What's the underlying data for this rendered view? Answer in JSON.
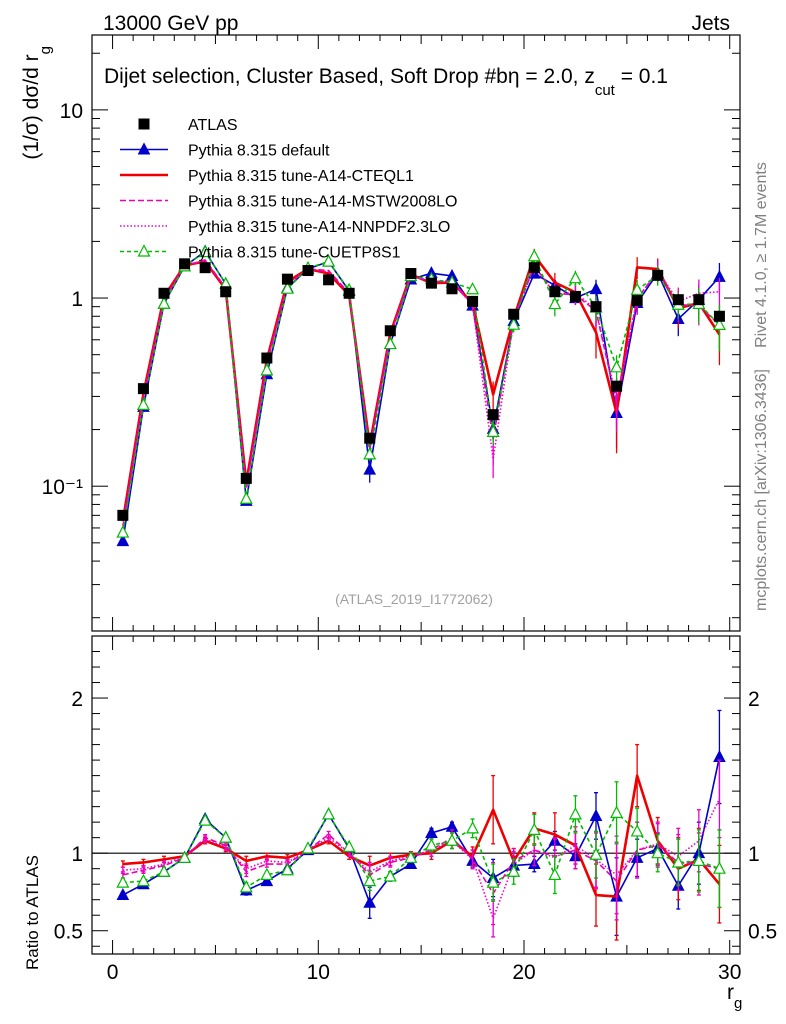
{
  "header": {
    "left": "13000 GeV pp",
    "right": "Jets",
    "rivet": "Rivet 4.1.0, ≥ 1.7M events",
    "mcplots": "mcplots.cern.ch [arXiv:1306.3436]",
    "analysis": "(ATLAS_2019_I1772062)"
  },
  "chart_data": {
    "type": "line",
    "title": "Dijet selection, Cluster Based, Soft Drop #bη = 2.0, z",
    "title_sub": "cut",
    "title_tail": " = 0.1",
    "xlabel": "r",
    "xlabel_sub": "g",
    "ylabel": "(1/σ) dσ/d r",
    "ylabel_sub": "g",
    "ratio_ylabel": "Ratio to ATLAS",
    "xlim": [
      -1,
      30.5
    ],
    "ylim_log": [
      0.017,
      25
    ],
    "ratio_ylim": [
      0.35,
      2.4
    ],
    "x_ticks": [
      "0",
      "10",
      "20",
      "30"
    ],
    "y_ticks_main": [
      {
        "v": 10,
        "label": "10"
      },
      {
        "v": 1,
        "label": "1"
      },
      {
        "v": 0.1,
        "label": "10⁻¹"
      }
    ],
    "y_ticks_ratio": [
      {
        "v": 2,
        "label": "2"
      },
      {
        "v": 1,
        "label": "1"
      },
      {
        "v": 0.5,
        "label": "0.5"
      }
    ],
    "x": [
      0.5,
      1.5,
      2.5,
      3.5,
      4.5,
      5.5,
      6.5,
      7.5,
      8.5,
      9.5,
      10.5,
      11.5,
      12.5,
      13.5,
      14.5,
      15.5,
      16.5,
      17.5,
      18.5,
      19.5,
      20.5,
      21.5,
      22.5,
      23.5,
      24.5,
      25.5,
      26.5,
      27.5,
      28.5,
      29.5
    ],
    "data": {
      "name": "ATLAS",
      "values": [
        0.07,
        0.33,
        1.06,
        1.52,
        1.45,
        1.08,
        0.11,
        0.48,
        1.26,
        1.4,
        1.25,
        1.06,
        0.18,
        0.67,
        1.35,
        1.2,
        1.12,
        0.96,
        0.24,
        0.82,
        1.45,
        1.08,
        1.02,
        0.9,
        0.34,
        0.97,
        1.32,
        0.98,
        0.98,
        0.8
      ]
    },
    "series": [
      {
        "name": "Pythia 8.315 default",
        "color": "#0000cc",
        "dash": "",
        "marker": "triangle-filled",
        "ratio": [
          0.73,
          0.8,
          0.88,
          0.97,
          1.22,
          1.1,
          0.76,
          0.82,
          0.9,
          1.02,
          1.25,
          1.03,
          0.68,
          0.85,
          0.93,
          1.13,
          1.17,
          0.95,
          0.84,
          0.92,
          0.93,
          1.08,
          0.98,
          1.24,
          0.72,
          0.97,
          1.03,
          0.79,
          1.0,
          1.62
        ],
        "err": [
          0.02,
          0.02,
          0.02,
          0.02,
          0.02,
          0.02,
          0.03,
          0.02,
          0.02,
          0.02,
          0.02,
          0.02,
          0.1,
          0.03,
          0.02,
          0.03,
          0.03,
          0.04,
          0.12,
          0.06,
          0.05,
          0.06,
          0.08,
          0.15,
          0.25,
          0.12,
          0.1,
          0.15,
          0.2,
          0.3
        ]
      },
      {
        "name": "Pythia 8.315 tune-A14-CTEQL1",
        "color": "#ee0000",
        "dash": "",
        "marker": "none",
        "ratio": [
          0.93,
          0.94,
          0.96,
          0.98,
          1.08,
          1.03,
          0.95,
          0.98,
          0.97,
          1.02,
          1.08,
          0.98,
          0.92,
          0.97,
          0.99,
          1.0,
          1.08,
          0.98,
          1.28,
          0.95,
          1.16,
          1.12,
          1.05,
          0.73,
          0.72,
          1.5,
          1.08,
          0.9,
          0.96,
          0.8
        ],
        "err": [
          0.02,
          0.02,
          0.02,
          0.02,
          0.02,
          0.02,
          0.03,
          0.02,
          0.02,
          0.02,
          0.02,
          0.02,
          0.06,
          0.03,
          0.02,
          0.04,
          0.05,
          0.06,
          0.22,
          0.08,
          0.1,
          0.14,
          0.12,
          0.2,
          0.28,
          0.2,
          0.15,
          0.2,
          0.2,
          0.25
        ]
      },
      {
        "name": "Pythia 8.315 tune-A14-MSTW2008LO",
        "color": "#ee00aa",
        "dash": "6,3",
        "marker": "none",
        "ratio": [
          0.86,
          0.89,
          0.92,
          0.97,
          1.1,
          1.05,
          0.88,
          0.93,
          0.93,
          1.02,
          1.12,
          1.0,
          0.86,
          0.94,
          0.97,
          1.02,
          1.1,
          0.96,
          0.74,
          0.95,
          1.02,
          0.98,
          1.02,
          0.95,
          0.82,
          1.02,
          1.05,
          0.94,
          0.93,
          0.9
        ],
        "err": [
          0.02,
          0.02,
          0.02,
          0.02,
          0.02,
          0.02,
          0.03,
          0.02,
          0.02,
          0.02,
          0.02,
          0.02,
          0.06,
          0.03,
          0.02,
          0.04,
          0.05,
          0.06,
          0.2,
          0.08,
          0.1,
          0.12,
          0.12,
          0.18,
          0.25,
          0.18,
          0.14,
          0.18,
          0.2,
          0.25
        ]
      },
      {
        "name": "Pythia 8.315 tune-A14-NNPDF2.3LO",
        "color": "#ee00cc",
        "dash": "1.5,2",
        "marker": "none",
        "ratio": [
          0.89,
          0.9,
          0.93,
          0.98,
          1.09,
          1.04,
          0.9,
          0.95,
          0.94,
          1.02,
          1.1,
          1.0,
          0.88,
          0.95,
          0.98,
          1.02,
          1.08,
          0.96,
          0.58,
          0.93,
          1.02,
          0.97,
          1.05,
          0.96,
          0.86,
          1.02,
          1.06,
          0.98,
          1.08,
          1.35
        ],
        "err": [
          0.02,
          0.02,
          0.02,
          0.02,
          0.02,
          0.02,
          0.03,
          0.02,
          0.02,
          0.02,
          0.02,
          0.02,
          0.06,
          0.03,
          0.02,
          0.04,
          0.05,
          0.06,
          0.12,
          0.08,
          0.1,
          0.12,
          0.12,
          0.18,
          0.25,
          0.18,
          0.14,
          0.18,
          0.2,
          0.25
        ]
      },
      {
        "name": "Pythia 8.315 tune-CUETP8S1",
        "color": "#00bb00",
        "dash": "4,3",
        "marker": "triangle-open",
        "ratio": [
          0.81,
          0.82,
          0.88,
          0.97,
          1.21,
          1.1,
          0.78,
          0.86,
          0.89,
          1.03,
          1.25,
          1.04,
          0.82,
          0.85,
          0.97,
          1.05,
          1.08,
          1.16,
          0.81,
          0.88,
          1.15,
          0.86,
          1.25,
          0.99,
          1.26,
          1.14,
          1.0,
          0.94,
          0.95,
          0.9
        ],
        "err": [
          0.02,
          0.02,
          0.02,
          0.02,
          0.02,
          0.02,
          0.03,
          0.02,
          0.02,
          0.02,
          0.02,
          0.02,
          0.06,
          0.03,
          0.02,
          0.04,
          0.05,
          0.06,
          0.12,
          0.08,
          0.1,
          0.12,
          0.12,
          0.15,
          0.2,
          0.15,
          0.12,
          0.15,
          0.2,
          0.25
        ]
      }
    ]
  }
}
